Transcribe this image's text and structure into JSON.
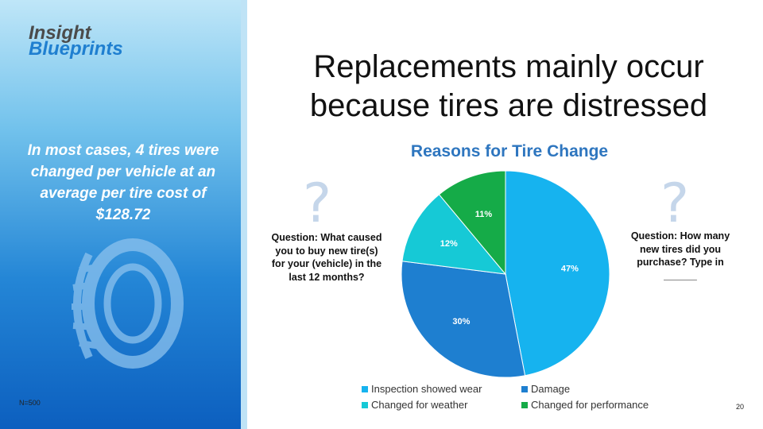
{
  "logo": {
    "line1": "Insight",
    "line2": "Blueprints"
  },
  "left_panel": {
    "stat_text": "In most cases, 4 tires were changed per vehicle at an average per tire cost of $128.72",
    "tire_icon": "tire-icon",
    "sample_note": "N=500"
  },
  "slide": {
    "title_line1": "Replacements mainly occur",
    "title_line2": "because tires are distressed",
    "page_number": "20"
  },
  "questions": {
    "left": "Question: What caused you to buy new tire(s) for your (vehicle) in the last 12 months?",
    "right": "Question: How many new tires did you purchase? Type in ______",
    "icon": "question-mark-icon"
  },
  "colors": {
    "inspection": "#16b3ef",
    "damage": "#1e7fd0",
    "weather": "#16c9d6",
    "performance": "#15ab48",
    "question_mark": "#c5d6ea",
    "chart_title": "#2e76bf"
  },
  "chart_data": {
    "type": "pie",
    "title": "Reasons for Tire Change",
    "categories": [
      "Inspection showed wear",
      "Damage",
      "Changed for weather",
      "Changed for performance"
    ],
    "values": [
      47,
      30,
      12,
      11
    ],
    "labels": [
      "47%",
      "30%",
      "12%",
      "11%"
    ],
    "colors": [
      "#16b3ef",
      "#1e7fd0",
      "#16c9d6",
      "#15ab48"
    ],
    "legend_position": "bottom"
  }
}
